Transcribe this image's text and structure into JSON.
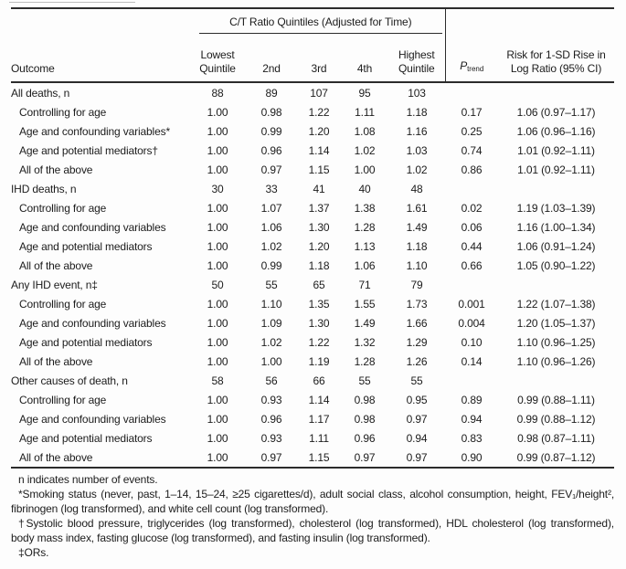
{
  "colors": {
    "text": "#1c1c1c",
    "rule": "#2c2c2c",
    "background": "#fdfdfd"
  },
  "table": {
    "column_group_title": "C/T Ratio Quintiles (Adjusted for Time)",
    "headers": {
      "outcome": "Outcome",
      "lowest": "Lowest Quintile",
      "second": "2nd",
      "third": "3rd",
      "fourth": "4th",
      "highest": "Highest Quintile",
      "p_symbol": "P",
      "p_subscript": "trend",
      "risk": "Risk for 1-SD Rise in Log Ratio (95% CI)"
    },
    "rows": [
      {
        "type": "group",
        "label": "All deaths, n",
        "values": [
          "88",
          "89",
          "107",
          "95",
          "103",
          "",
          ""
        ]
      },
      {
        "type": "sub",
        "label": "Controlling for age",
        "values": [
          "1.00",
          "0.98",
          "1.22",
          "1.11",
          "1.18",
          "0.17",
          "1.06 (0.97–1.17)"
        ]
      },
      {
        "type": "sub",
        "label": "Age and confounding variables*",
        "values": [
          "1.00",
          "0.99",
          "1.20",
          "1.08",
          "1.16",
          "0.25",
          "1.06 (0.96–1.16)"
        ]
      },
      {
        "type": "sub",
        "label": "Age and potential mediators†",
        "values": [
          "1.00",
          "0.96",
          "1.14",
          "1.02",
          "1.03",
          "0.74",
          "1.01 (0.92–1.11)"
        ]
      },
      {
        "type": "sub",
        "label": "All of the above",
        "values": [
          "1.00",
          "0.97",
          "1.15",
          "1.00",
          "1.02",
          "0.86",
          "1.01 (0.92–1.11)"
        ]
      },
      {
        "type": "group",
        "label": "IHD deaths, n",
        "values": [
          "30",
          "33",
          "41",
          "40",
          "48",
          "",
          ""
        ]
      },
      {
        "type": "sub",
        "label": "Controlling for age",
        "values": [
          "1.00",
          "1.07",
          "1.37",
          "1.38",
          "1.61",
          "0.02",
          "1.19 (1.03–1.39)"
        ]
      },
      {
        "type": "sub",
        "label": "Age and confounding variables",
        "values": [
          "1.00",
          "1.06",
          "1.30",
          "1.28",
          "1.49",
          "0.06",
          "1.16 (1.00–1.34)"
        ]
      },
      {
        "type": "sub",
        "label": "Age and potential mediators",
        "values": [
          "1.00",
          "1.02",
          "1.20",
          "1.13",
          "1.18",
          "0.44",
          "1.06 (0.91–1.24)"
        ]
      },
      {
        "type": "sub",
        "label": "All of the above",
        "values": [
          "1.00",
          "0.99",
          "1.18",
          "1.06",
          "1.10",
          "0.66",
          "1.05 (0.90–1.22)"
        ]
      },
      {
        "type": "group",
        "label": "Any IHD event, n‡",
        "values": [
          "50",
          "55",
          "65",
          "71",
          "79",
          "",
          ""
        ]
      },
      {
        "type": "sub",
        "label": "Controlling for age",
        "values": [
          "1.00",
          "1.10",
          "1.35",
          "1.55",
          "1.73",
          "0.001",
          "1.22 (1.07–1.38)"
        ]
      },
      {
        "type": "sub",
        "label": "Age and confounding variables",
        "values": [
          "1.00",
          "1.09",
          "1.30",
          "1.49",
          "1.66",
          "0.004",
          "1.20 (1.05–1.37)"
        ]
      },
      {
        "type": "sub",
        "label": "Age and potential mediators",
        "values": [
          "1.00",
          "1.02",
          "1.22",
          "1.32",
          "1.29",
          "0.10",
          "1.10 (0.96–1.25)"
        ]
      },
      {
        "type": "sub",
        "label": "All of the above",
        "values": [
          "1.00",
          "1.00",
          "1.19",
          "1.28",
          "1.26",
          "0.14",
          "1.10 (0.96–1.26)"
        ]
      },
      {
        "type": "group",
        "label": "Other causes of death, n",
        "values": [
          "58",
          "56",
          "66",
          "55",
          "55",
          "",
          ""
        ]
      },
      {
        "type": "sub",
        "label": "Controlling for age",
        "values": [
          "1.00",
          "0.93",
          "1.14",
          "0.98",
          "0.95",
          "0.89",
          "0.99 (0.88–1.11)"
        ]
      },
      {
        "type": "sub",
        "label": "Age and confounding variables",
        "values": [
          "1.00",
          "0.96",
          "1.17",
          "0.98",
          "0.97",
          "0.94",
          "0.99 (0.88–1.12)"
        ]
      },
      {
        "type": "sub",
        "label": "Age and potential mediators",
        "values": [
          "1.00",
          "0.93",
          "1.11",
          "0.96",
          "0.94",
          "0.83",
          "0.98 (0.87–1.11)"
        ]
      },
      {
        "type": "sub",
        "label": "All of the above",
        "values": [
          "1.00",
          "0.97",
          "1.15",
          "0.97",
          "0.97",
          "0.90",
          "0.99 (0.87–1.12)"
        ]
      }
    ]
  },
  "footnotes": [
    "n indicates number of events.",
    "*Smoking status (never, past, 1–14, 15–24, ≥25 cigarettes/d), adult social class, alcohol consumption, height, FEV₁/height², fibrinogen (log transformed), and white cell count (log transformed).",
    "†Systolic blood pressure, triglycerides (log transformed), cholesterol (log transformed), HDL cholesterol (log transformed), body mass index, fasting glucose (log transformed), and fasting insulin (log transformed).",
    "‡ORs."
  ]
}
